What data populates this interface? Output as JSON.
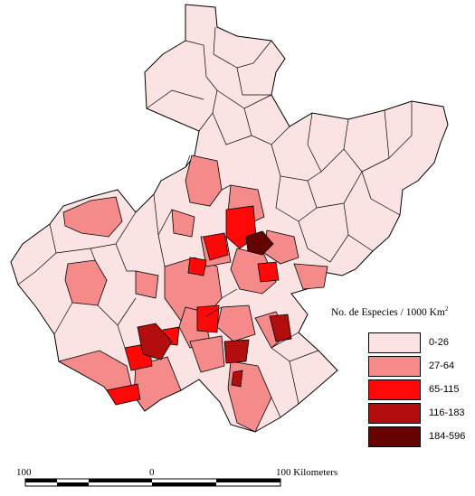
{
  "legend": {
    "title": "No. de Especies / 1000 Km",
    "title_superscript": "2",
    "items": [
      {
        "label": "0-26",
        "color": "#fce3e3"
      },
      {
        "label": "27-64",
        "color": "#f58a8a"
      },
      {
        "label": "65-115",
        "color": "#ff0808"
      },
      {
        "label": "116-183",
        "color": "#b40d0d"
      },
      {
        "label": "184-596",
        "color": "#650202"
      }
    ]
  },
  "scale_bar": {
    "left_label": "100",
    "middle_label": "0",
    "right_label": "100 Kilometers"
  }
}
